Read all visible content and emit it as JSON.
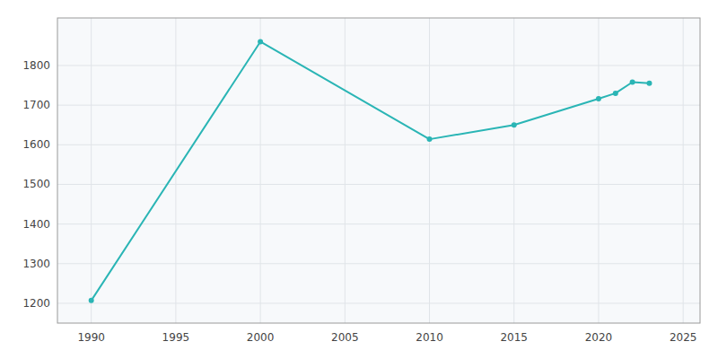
{
  "chart_data": {
    "type": "line",
    "x": [
      1990,
      2000,
      2010,
      2015,
      2020,
      2021,
      2022,
      2023
    ],
    "values": [
      1207,
      1860,
      1614,
      1650,
      1716,
      1730,
      1758,
      1755
    ],
    "color": "#2ab5b5",
    "marker": "circle",
    "xlim": [
      1988,
      2026
    ],
    "ylim": [
      1150,
      1920
    ],
    "xticks": [
      1990,
      1995,
      2000,
      2005,
      2010,
      2015,
      2020,
      2025
    ],
    "yticks": [
      1200,
      1300,
      1400,
      1500,
      1600,
      1700,
      1800
    ],
    "grid": true
  }
}
